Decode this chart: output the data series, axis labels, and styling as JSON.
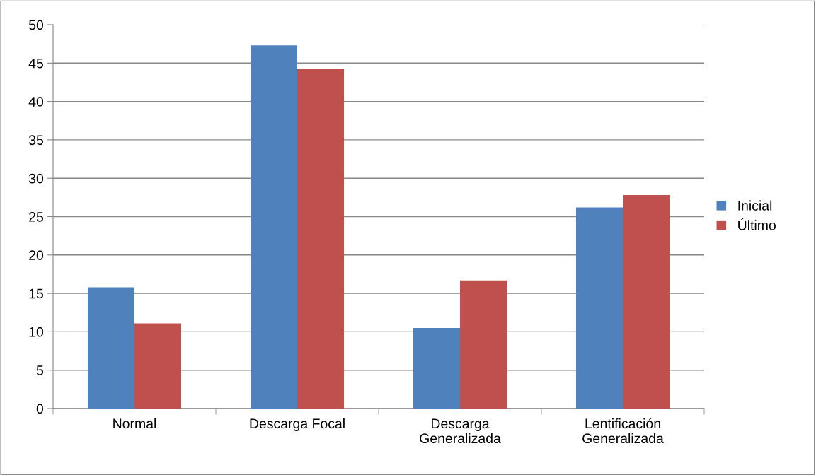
{
  "chart_data": {
    "type": "bar",
    "categories": [
      "Normal",
      "Descarga Focal",
      "Descarga\nGeneralizada",
      "Lentificación\nGeneralizada"
    ],
    "series": [
      {
        "name": "Inicial",
        "color": "#4f81bd",
        "values": [
          15.8,
          47.3,
          10.5,
          26.2
        ]
      },
      {
        "name": "Último",
        "color": "#c0504d",
        "values": [
          11.1,
          44.3,
          16.7,
          27.8
        ]
      }
    ],
    "ylim": [
      0,
      50
    ],
    "yticks": [
      0,
      5,
      10,
      15,
      20,
      25,
      30,
      35,
      40,
      45,
      50
    ],
    "grid": "y",
    "legend": "right"
  }
}
